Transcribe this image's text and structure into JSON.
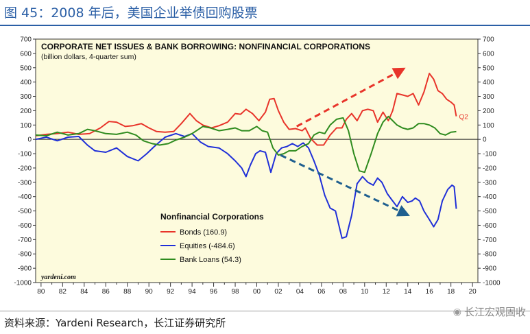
{
  "header": {
    "figure_title": "图 45：2008 年后，美国企业举债回购股票"
  },
  "footer": {
    "source": "资料来源：Yardeni Research，长江证券研究所",
    "watermark_text": "长江宏观固收",
    "watermark_icon": "wechat-icon"
  },
  "chart_data": {
    "type": "line",
    "title": "CORPORATE NET ISSUES & BANK BORROWING: NONFINANCIAL CORPORATIONS",
    "subtitle": "(billion dollars, 4-quarter sum)",
    "legend_title": "Nonfinancial Corporations",
    "legend_position": "center-left",
    "credit": "yardeni.com",
    "end_marker_label": "Q2",
    "xlim": [
      1979.5,
      2020.5
    ],
    "ylim": [
      -1000,
      700
    ],
    "y_ticks": [
      700,
      600,
      500,
      400,
      300,
      200,
      100,
      0,
      -100,
      -200,
      -300,
      -400,
      -500,
      -600,
      -700,
      -800,
      -900,
      -1000
    ],
    "x_ticks": [
      1980,
      1982,
      1984,
      1986,
      1988,
      1990,
      1992,
      1994,
      1996,
      1998,
      2000,
      2002,
      2004,
      2006,
      2008,
      2010,
      2012,
      2014,
      2016,
      2018,
      2020
    ],
    "x_tick_labels": [
      "80",
      "82",
      "84",
      "86",
      "88",
      "90",
      "92",
      "94",
      "96",
      "98",
      "00",
      "02",
      "04",
      "06",
      "08",
      "10",
      "12",
      "14",
      "16",
      "18",
      "20"
    ],
    "series": [
      {
        "name": "Bonds",
        "legend_label": "Bonds (160.9)",
        "color": "#e8342a",
        "points": [
          [
            1979.5,
            25
          ],
          [
            1980.5,
            35
          ],
          [
            1981.5,
            40
          ],
          [
            1982.5,
            50
          ],
          [
            1983.5,
            35
          ],
          [
            1984.5,
            40
          ],
          [
            1985.5,
            80
          ],
          [
            1986.3,
            125
          ],
          [
            1987,
            120
          ],
          [
            1987.8,
            90
          ],
          [
            1988.5,
            95
          ],
          [
            1989.3,
            110
          ],
          [
            1990,
            80
          ],
          [
            1990.7,
            55
          ],
          [
            1991.5,
            50
          ],
          [
            1992.3,
            55
          ],
          [
            1993,
            110
          ],
          [
            1993.8,
            180
          ],
          [
            1994.4,
            130
          ],
          [
            1995,
            100
          ],
          [
            1995.8,
            80
          ],
          [
            1996.5,
            95
          ],
          [
            1997.3,
            120
          ],
          [
            1998,
            180
          ],
          [
            1998.5,
            175
          ],
          [
            1999,
            210
          ],
          [
            1999.6,
            180
          ],
          [
            2000.2,
            130
          ],
          [
            2000.8,
            190
          ],
          [
            2001.2,
            280
          ],
          [
            2001.6,
            285
          ],
          [
            2002,
            200
          ],
          [
            2002.5,
            120
          ],
          [
            2003,
            70
          ],
          [
            2003.6,
            75
          ],
          [
            2004.2,
            60
          ],
          [
            2004.5,
            80
          ],
          [
            2005,
            5
          ],
          [
            2005.6,
            -40
          ],
          [
            2006.2,
            -40
          ],
          [
            2006.8,
            30
          ],
          [
            2007.4,
            80
          ],
          [
            2007.9,
            80
          ],
          [
            2008.3,
            140
          ],
          [
            2008.8,
            180
          ],
          [
            2009.3,
            130
          ],
          [
            2009.8,
            200
          ],
          [
            2010.3,
            210
          ],
          [
            2010.8,
            200
          ],
          [
            2011.2,
            120
          ],
          [
            2011.7,
            190
          ],
          [
            2012.2,
            130
          ],
          [
            2012.6,
            200
          ],
          [
            2013,
            320
          ],
          [
            2013.5,
            310
          ],
          [
            2014,
            300
          ],
          [
            2014.5,
            320
          ],
          [
            2015,
            240
          ],
          [
            2015.5,
            330
          ],
          [
            2016,
            460
          ],
          [
            2016.4,
            420
          ],
          [
            2016.8,
            340
          ],
          [
            2017.2,
            320
          ],
          [
            2017.6,
            280
          ],
          [
            2018,
            260
          ],
          [
            2018.3,
            240
          ],
          [
            2018.5,
            161
          ]
        ]
      },
      {
        "name": "Equities",
        "legend_label": "Equities (-484.6)",
        "color": "#1f2fd8",
        "points": [
          [
            1979.5,
            0
          ],
          [
            1980.5,
            15
          ],
          [
            1981.5,
            -10
          ],
          [
            1982.5,
            15
          ],
          [
            1983.5,
            20
          ],
          [
            1984.3,
            -40
          ],
          [
            1985,
            -80
          ],
          [
            1986,
            -90
          ],
          [
            1987,
            -60
          ],
          [
            1988,
            -120
          ],
          [
            1989,
            -150
          ],
          [
            1989.8,
            -100
          ],
          [
            1990.5,
            -50
          ],
          [
            1991.5,
            15
          ],
          [
            1992.5,
            40
          ],
          [
            1993.3,
            20
          ],
          [
            1994,
            40
          ],
          [
            1994.8,
            -20
          ],
          [
            1995.5,
            -50
          ],
          [
            1996.5,
            -60
          ],
          [
            1997.3,
            -100
          ],
          [
            1998,
            -150
          ],
          [
            1998.6,
            -200
          ],
          [
            1999,
            -260
          ],
          [
            1999.4,
            -180
          ],
          [
            1999.9,
            -100
          ],
          [
            2000.3,
            -80
          ],
          [
            2000.8,
            -90
          ],
          [
            2001.3,
            -230
          ],
          [
            2001.8,
            -100
          ],
          [
            2002.3,
            -60
          ],
          [
            2002.8,
            -50
          ],
          [
            2003.3,
            -30
          ],
          [
            2003.8,
            -50
          ],
          [
            2004.3,
            -25
          ],
          [
            2004.8,
            -60
          ],
          [
            2005.3,
            -150
          ],
          [
            2005.8,
            -250
          ],
          [
            2006.3,
            -390
          ],
          [
            2006.8,
            -480
          ],
          [
            2007.3,
            -500
          ],
          [
            2007.9,
            -690
          ],
          [
            2008.3,
            -680
          ],
          [
            2008.8,
            -530
          ],
          [
            2009.3,
            -310
          ],
          [
            2009.8,
            -260
          ],
          [
            2010.3,
            -300
          ],
          [
            2010.8,
            -320
          ],
          [
            2011.2,
            -270
          ],
          [
            2011.6,
            -300
          ],
          [
            2012.1,
            -380
          ],
          [
            2012.5,
            -420
          ],
          [
            2013,
            -470
          ],
          [
            2013.5,
            -400
          ],
          [
            2014,
            -440
          ],
          [
            2014.4,
            -430
          ],
          [
            2014.7,
            -410
          ],
          [
            2015.1,
            -430
          ],
          [
            2015.5,
            -500
          ],
          [
            2016,
            -560
          ],
          [
            2016.4,
            -610
          ],
          [
            2016.8,
            -560
          ],
          [
            2017.2,
            -430
          ],
          [
            2017.7,
            -350
          ],
          [
            2018.1,
            -320
          ],
          [
            2018.3,
            -330
          ],
          [
            2018.5,
            -485
          ]
        ]
      },
      {
        "name": "Bank Loans",
        "legend_label": "Bank Loans (54.3)",
        "color": "#2e8b1e",
        "points": [
          [
            1979.5,
            30
          ],
          [
            1980.5,
            25
          ],
          [
            1981.5,
            50
          ],
          [
            1982.5,
            30
          ],
          [
            1983.5,
            40
          ],
          [
            1984.3,
            70
          ],
          [
            1985,
            60
          ],
          [
            1986,
            40
          ],
          [
            1987,
            35
          ],
          [
            1988,
            50
          ],
          [
            1988.8,
            30
          ],
          [
            1989.5,
            -10
          ],
          [
            1990.3,
            -30
          ],
          [
            1991,
            -40
          ],
          [
            1991.8,
            -30
          ],
          [
            1992.5,
            -5
          ],
          [
            1993.3,
            15
          ],
          [
            1994,
            40
          ],
          [
            1995,
            90
          ],
          [
            1995.7,
            80
          ],
          [
            1996.5,
            60
          ],
          [
            1997.3,
            70
          ],
          [
            1998,
            80
          ],
          [
            1998.6,
            60
          ],
          [
            1999.3,
            60
          ],
          [
            2000,
            90
          ],
          [
            2000.5,
            60
          ],
          [
            2001,
            50
          ],
          [
            2001.5,
            -60
          ],
          [
            2002,
            -110
          ],
          [
            2002.5,
            -100
          ],
          [
            2003,
            -80
          ],
          [
            2003.6,
            -80
          ],
          [
            2004.2,
            -50
          ],
          [
            2004.8,
            -30
          ],
          [
            2005.3,
            30
          ],
          [
            2005.8,
            50
          ],
          [
            2006.3,
            40
          ],
          [
            2006.8,
            100
          ],
          [
            2007.4,
            140
          ],
          [
            2008,
            150
          ],
          [
            2008.5,
            60
          ],
          [
            2009,
            -100
          ],
          [
            2009.5,
            -220
          ],
          [
            2010,
            -230
          ],
          [
            2010.6,
            -100
          ],
          [
            2011.2,
            40
          ],
          [
            2011.7,
            120
          ],
          [
            2012.2,
            160
          ],
          [
            2012.6,
            130
          ],
          [
            2013,
            100
          ],
          [
            2013.5,
            80
          ],
          [
            2014,
            70
          ],
          [
            2014.5,
            80
          ],
          [
            2015,
            110
          ],
          [
            2015.5,
            110
          ],
          [
            2016,
            100
          ],
          [
            2016.5,
            80
          ],
          [
            2017,
            40
          ],
          [
            2017.5,
            30
          ],
          [
            2018,
            50
          ],
          [
            2018.5,
            54
          ]
        ]
      }
    ],
    "annotations": [
      {
        "type": "arrow",
        "color": "#e8342a",
        "from": [
          2003.7,
          90
        ],
        "to": [
          2013.8,
          500
        ]
      },
      {
        "type": "arrow",
        "color": "#1f5f8f",
        "from": [
          2002.2,
          -110
        ],
        "to": [
          2014.2,
          -535
        ]
      }
    ]
  }
}
